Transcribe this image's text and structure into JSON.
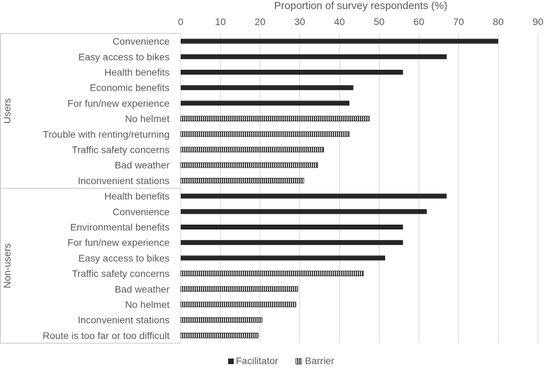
{
  "chart_data": {
    "type": "bar",
    "orientation": "horizontal",
    "xlabel": "Proportion of survey respondents (%)",
    "xlim": [
      0,
      90
    ],
    "xticks": [
      "0",
      "10",
      "20",
      "30",
      "40",
      "50",
      "60",
      "70",
      "80",
      "90"
    ],
    "grid": true,
    "legend_position": "bottom",
    "legend": [
      {
        "name": "Facilitator",
        "pattern": "solid",
        "color": "#262626"
      },
      {
        "name": "Barrier",
        "pattern": "striped",
        "color": "#262626"
      }
    ],
    "groups": [
      {
        "name": "Users",
        "bars": [
          {
            "label": "Convenience",
            "value": 80,
            "type": "Facilitator"
          },
          {
            "label": "Easy access to bikes",
            "value": 67,
            "type": "Facilitator"
          },
          {
            "label": "Health benefits",
            "value": 56,
            "type": "Facilitator"
          },
          {
            "label": "Economic benefits",
            "value": 43.5,
            "type": "Facilitator"
          },
          {
            "label": "For fun/new experience",
            "value": 42.5,
            "type": "Facilitator"
          },
          {
            "label": "No helmet",
            "value": 47.5,
            "type": "Barrier"
          },
          {
            "label": "Trouble with renting/returning",
            "value": 42.5,
            "type": "Barrier"
          },
          {
            "label": "Traffic safety concerns",
            "value": 36,
            "type": "Barrier"
          },
          {
            "label": "Bad weather",
            "value": 34.5,
            "type": "Barrier"
          },
          {
            "label": "Inconvenient stations",
            "value": 31,
            "type": "Barrier"
          }
        ]
      },
      {
        "name": "Non-users",
        "bars": [
          {
            "label": "Health benefits",
            "value": 67,
            "type": "Facilitator"
          },
          {
            "label": "Convenience",
            "value": 62,
            "type": "Facilitator"
          },
          {
            "label": "Environmental benefits",
            "value": 56,
            "type": "Facilitator"
          },
          {
            "label": "For fun/new experience",
            "value": 56,
            "type": "Facilitator"
          },
          {
            "label": "Easy access to bikes",
            "value": 51.5,
            "type": "Facilitator"
          },
          {
            "label": "Traffic safety concerns",
            "value": 46,
            "type": "Barrier"
          },
          {
            "label": "Bad weather",
            "value": 29.5,
            "type": "Barrier"
          },
          {
            "label": "No helmet",
            "value": 29,
            "type": "Barrier"
          },
          {
            "label": "Inconvenient stations",
            "value": 20.5,
            "type": "Barrier"
          },
          {
            "label": "Route is too far or too difficult",
            "value": 19.5,
            "type": "Barrier"
          }
        ]
      }
    ]
  }
}
